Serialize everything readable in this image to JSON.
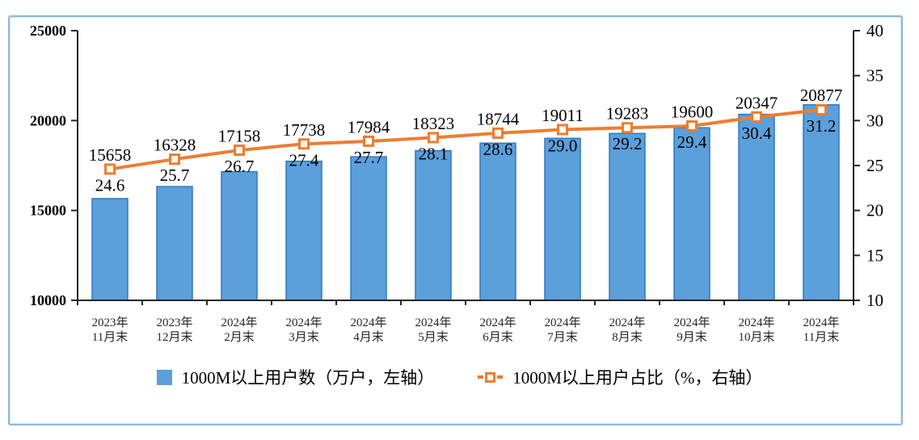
{
  "chart_data": {
    "type": "combo",
    "categories": [
      "2023年11月末",
      "2023年12月末",
      "2024年2月末",
      "2024年3月末",
      "2024年4月末",
      "2024年5月末",
      "2024年6月末",
      "2024年7月末",
      "2024年8月末",
      "2024年9月末",
      "2024年10月末",
      "2024年11月末"
    ],
    "categories_lines": [
      [
        "2023年",
        "11月末"
      ],
      [
        "2023年",
        "12月末"
      ],
      [
        "2024年",
        "2月末"
      ],
      [
        "2024年",
        "3月末"
      ],
      [
        "2024年",
        "4月末"
      ],
      [
        "2024年",
        "5月末"
      ],
      [
        "2024年",
        "6月末"
      ],
      [
        "2024年",
        "7月末"
      ],
      [
        "2024年",
        "8月末"
      ],
      [
        "2024年",
        "9月末"
      ],
      [
        "2024年",
        "10月末"
      ],
      [
        "2024年",
        "11月末"
      ]
    ],
    "series": [
      {
        "name": "1000M以上用户数（万户，左轴）",
        "type": "bar",
        "axis": "left",
        "values": [
          15658,
          16328,
          17158,
          17738,
          17984,
          18323,
          18744,
          19011,
          19283,
          19600,
          20347,
          20877
        ],
        "labels": [
          "15658",
          "16328",
          "17158",
          "17738",
          "17984",
          "18323",
          "18744",
          "19011",
          "19283",
          "19600",
          "20347",
          "20877"
        ],
        "fill_color": "#5B9FDB",
        "border_color": "#2E78BE"
      },
      {
        "name": "1000M以上用户占比（%，右轴）",
        "type": "line",
        "axis": "right",
        "values": [
          24.6,
          25.7,
          26.7,
          27.4,
          27.7,
          28.1,
          28.6,
          29.0,
          29.2,
          29.4,
          30.4,
          31.2
        ],
        "labels": [
          "24.6",
          "25.7",
          "26.7",
          "27.4",
          "27.7",
          "28.1",
          "28.6",
          "29.0",
          "29.2",
          "29.4",
          "30.4",
          "31.2"
        ],
        "color": "#ED7D31",
        "marker": "square",
        "marker_fill": "#FFFFFF"
      }
    ],
    "left_axis": {
      "min": 10000,
      "max": 25000,
      "tick_interval": 5000,
      "ticks": [
        "25000",
        "20000",
        "15000",
        "10000"
      ],
      "tick_values": [
        25000,
        20000,
        15000,
        10000
      ]
    },
    "right_axis": {
      "min": 10,
      "max": 40,
      "tick_interval": 5,
      "ticks": [
        "40",
        "35",
        "30",
        "25",
        "20",
        "15",
        "10"
      ],
      "tick_values": [
        40,
        35,
        30,
        25,
        20,
        15,
        10
      ]
    },
    "grid": false,
    "legend_position": "bottom",
    "title": "",
    "axis_color": "#262626",
    "label_color": "#000000",
    "frame_color": "#8CB9DF"
  }
}
